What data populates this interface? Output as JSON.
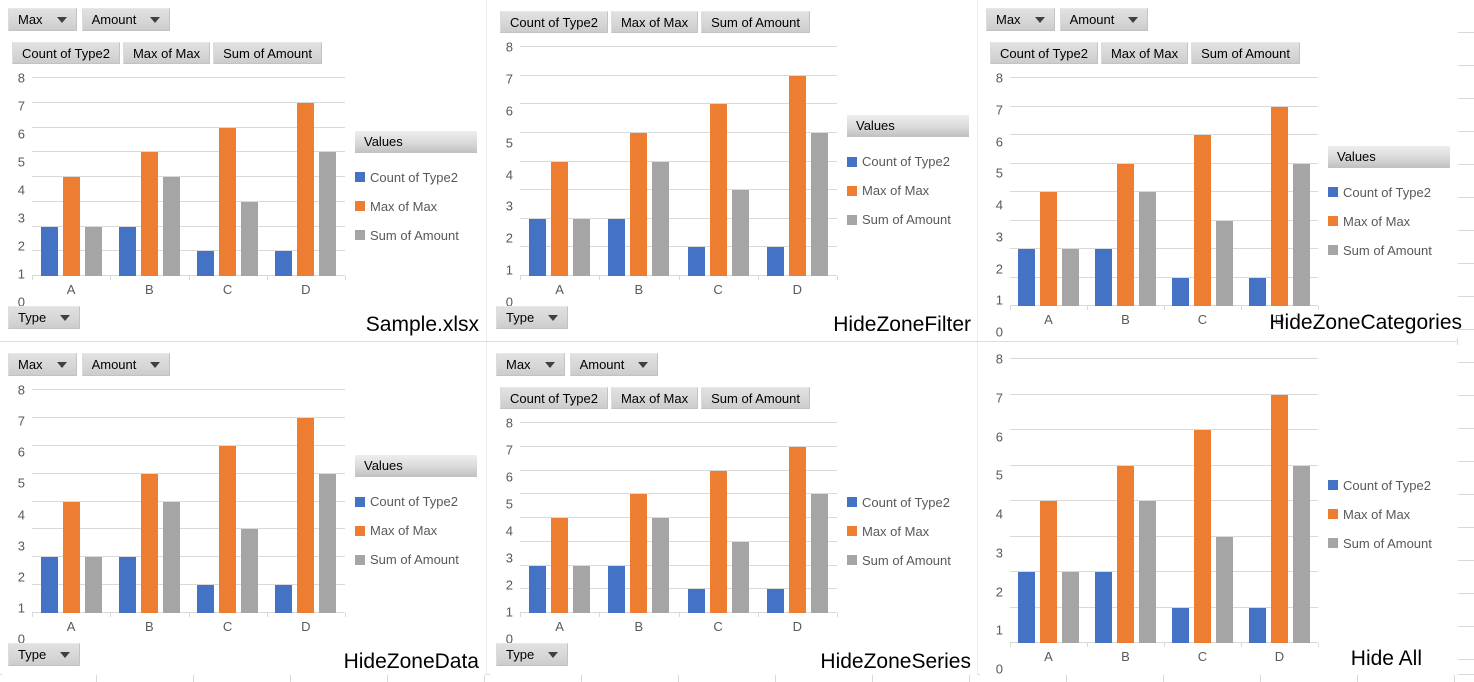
{
  "colors": {
    "series_blue": "#4472C4",
    "series_orange": "#ED7D31",
    "series_gray": "#A5A5A5",
    "axis_text": "#595959",
    "gridline": "#D9D9D9",
    "button_face": "#D6D6D6"
  },
  "pivot_ui": {
    "filter_buttons": [
      "Max",
      "Amount"
    ],
    "field_buttons": [
      "Count of Type2",
      "Max of Max",
      "Sum of Amount"
    ],
    "values_button": "Values",
    "type_button": "Type"
  },
  "chart_data": {
    "type": "bar",
    "categories": [
      "A",
      "B",
      "C",
      "D"
    ],
    "series": [
      {
        "name": "Count of Type2",
        "color": "#4472C4",
        "values": [
          2,
          2,
          1,
          1
        ]
      },
      {
        "name": "Max of Max",
        "color": "#ED7D31",
        "values": [
          4,
          5,
          6,
          7
        ]
      },
      {
        "name": "Sum of Amount",
        "color": "#A5A5A5",
        "values": [
          2,
          4,
          3,
          5
        ]
      }
    ],
    "ylim": [
      0,
      8
    ],
    "yticks": [
      0,
      1,
      2,
      3,
      4,
      5,
      6,
      7,
      8
    ],
    "grid": true,
    "legend_position": "right"
  },
  "panels": [
    {
      "id": "sample",
      "label": "Sample.xlsx",
      "show_filter_zone": true,
      "show_data_zone": true,
      "show_series_zone": true,
      "show_categories_zone": true
    },
    {
      "id": "hide-zone-filter",
      "label": "HideZoneFilter",
      "show_filter_zone": false,
      "show_data_zone": true,
      "show_series_zone": true,
      "show_categories_zone": true
    },
    {
      "id": "hide-zone-categories",
      "label": "HideZoneCategories",
      "show_filter_zone": true,
      "show_data_zone": true,
      "show_series_zone": true,
      "show_categories_zone": false
    },
    {
      "id": "hide-zone-data",
      "label": "HideZoneData",
      "show_filter_zone": true,
      "show_data_zone": false,
      "show_series_zone": true,
      "show_categories_zone": true
    },
    {
      "id": "hide-zone-series",
      "label": "HideZoneSeries",
      "show_filter_zone": true,
      "show_data_zone": true,
      "show_series_zone": false,
      "show_categories_zone": true
    },
    {
      "id": "hide-all",
      "label": "Hide All",
      "show_filter_zone": false,
      "show_data_zone": false,
      "show_series_zone": false,
      "show_categories_zone": false
    }
  ]
}
